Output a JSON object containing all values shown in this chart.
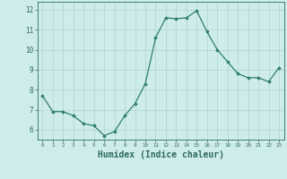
{
  "x": [
    0,
    1,
    2,
    3,
    4,
    5,
    6,
    7,
    8,
    9,
    10,
    11,
    12,
    13,
    14,
    15,
    16,
    17,
    18,
    19,
    20,
    21,
    22,
    23
  ],
  "y": [
    7.7,
    6.9,
    6.9,
    6.7,
    6.3,
    6.2,
    5.7,
    5.9,
    6.7,
    7.3,
    8.3,
    10.6,
    11.6,
    11.55,
    11.6,
    11.95,
    10.9,
    10.0,
    9.4,
    8.8,
    8.6,
    8.6,
    8.4,
    9.1
  ],
  "line_color": "#2e7d6e",
  "marker": "D",
  "marker_size": 1.8,
  "bg_color": "#ceecea",
  "grid_color": "#aed4d1",
  "tick_color": "#2e6b5e",
  "xlabel": "Humidex (Indice chaleur)",
  "xlabel_fontsize": 7,
  "ytick_labels": [
    "6",
    "7",
    "8",
    "9",
    "10",
    "11",
    "12"
  ],
  "ytick_vals": [
    6,
    7,
    8,
    9,
    10,
    11,
    12
  ],
  "xlim": [
    -0.5,
    23.5
  ],
  "ylim": [
    5.5,
    12.4
  ]
}
